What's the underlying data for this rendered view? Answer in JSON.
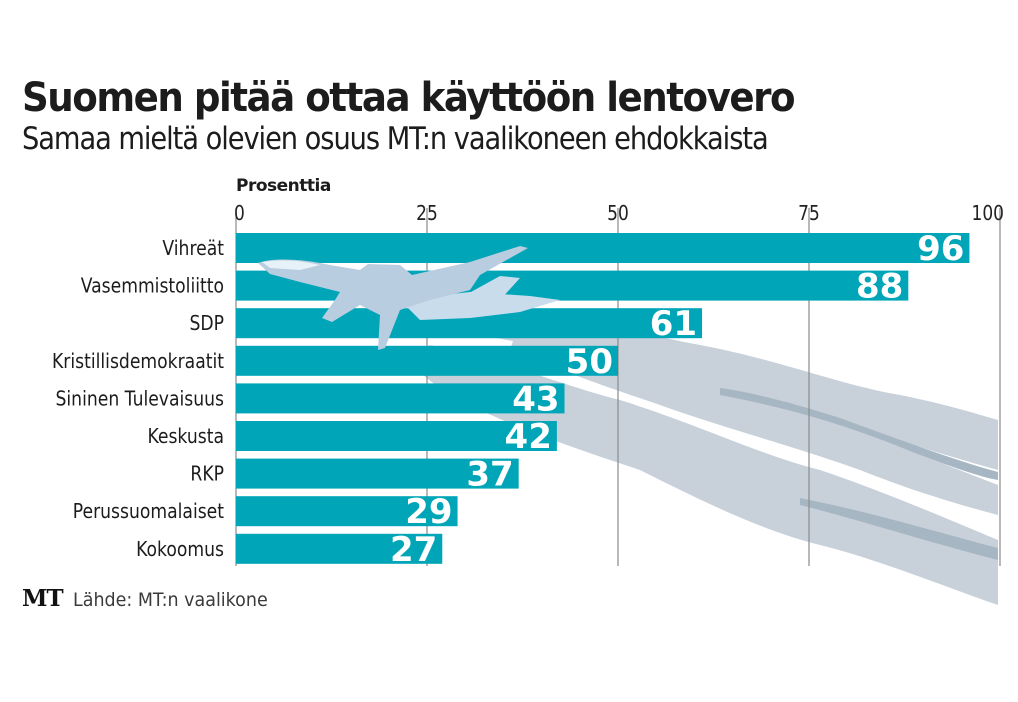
{
  "chart_data": {
    "type": "bar",
    "orientation": "horizontal",
    "title": "Suomen pitää ottaa käyttöön lentovero",
    "subtitle": "Samaa mieltä olevien osuus MT:n vaalikoneen ehdokkaista",
    "xlabel": "Prosenttia",
    "ylabel": "",
    "xlim": [
      0,
      100
    ],
    "xticks": [
      0,
      25,
      50,
      75,
      100
    ],
    "xtick_labels": [
      "0",
      "25",
      "50",
      "75",
      "100"
    ],
    "grid": true,
    "categories": [
      "Vihreät",
      "Vasemmistoliitto",
      "SDP",
      "Kristillisdemokraatit",
      "Sininen Tulevaisuus",
      "Keskusta",
      "RKP",
      "Perussuomalaiset",
      "Kokoomus"
    ],
    "values": [
      96,
      88,
      61,
      50,
      43,
      42,
      37,
      29,
      27
    ],
    "data_labels": [
      "96",
      "88",
      "61",
      "50",
      "43",
      "42",
      "37",
      "29",
      "27"
    ],
    "bar_color": "#00a5b8",
    "label_color": "#ffffff",
    "decoration": "airplane-with-contrails"
  },
  "source": {
    "logo": "MT",
    "text": "Lähde: MT:n vaalikone"
  },
  "colors": {
    "bar": "#00a5b8",
    "contrail": "#c8d0da",
    "contrail_dark": "#a7b6c3",
    "plane": "#b8cde0",
    "grid": "#8a8a8a"
  }
}
